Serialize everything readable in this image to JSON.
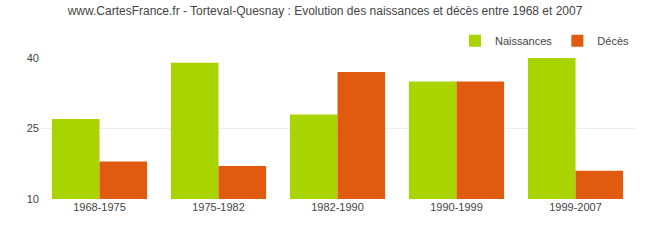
{
  "chart_data": {
    "type": "bar",
    "title": "www.CartesFrance.fr - Torteval-Quesnay : Evolution des naissances et décès entre 1968 et 2007",
    "categories": [
      "1968-1975",
      "1975-1982",
      "1982-1990",
      "1990-1999",
      "1999-2007"
    ],
    "series": [
      {
        "name": "Naissances",
        "color": "#aad400",
        "values": [
          27,
          39,
          28,
          35,
          40
        ]
      },
      {
        "name": "Décès",
        "color": "#e05a10",
        "values": [
          18,
          17,
          37,
          35,
          16
        ]
      }
    ],
    "ylim": [
      10,
      40
    ],
    "yticks": [
      10,
      25,
      40
    ],
    "grid": true,
    "legend": "upper right"
  }
}
